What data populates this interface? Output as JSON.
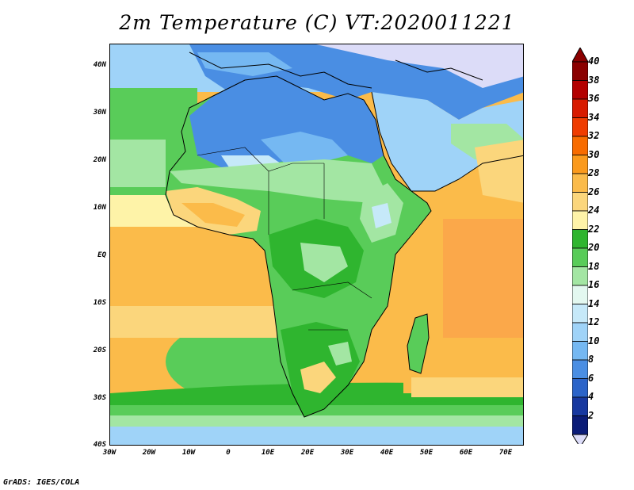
{
  "title": "2m Temperature (C) VT:2020011221",
  "footer": "GrADS: IGES/COLA",
  "lat_labels": [
    "40N",
    "30N",
    "20N",
    "10N",
    "EQ",
    "10S",
    "20S",
    "30S",
    "40S"
  ],
  "lon_labels": [
    "30W",
    "20W",
    "10W",
    "0",
    "10E",
    "20E",
    "30E",
    "40E",
    "50E",
    "60E",
    "70E"
  ],
  "colorbar": {
    "labels": [
      "40",
      "38",
      "36",
      "34",
      "32",
      "30",
      "28",
      "26",
      "24",
      "22",
      "20",
      "18",
      "16",
      "14",
      "12",
      "10",
      "8",
      "6",
      "4",
      "2"
    ],
    "colors": [
      "#8b0000",
      "#b30000",
      "#d81b00",
      "#ef3c00",
      "#f86c00",
      "#fb9a1c",
      "#fbbb4a",
      "#fbd67c",
      "#fef3a8",
      "#2fb52f",
      "#59cc59",
      "#a3e6a3",
      "#e3f8f0",
      "#c6e9f9",
      "#9fd3f8",
      "#75b8f2",
      "#4a8ee3",
      "#2b64c9",
      "#1738a0",
      "#0b1c78"
    ],
    "below_color": "#dcdcf8"
  },
  "map": {
    "region": "Africa",
    "lon_range": [
      -30,
      75
    ],
    "lat_range": [
      -40,
      45
    ],
    "field": "2m temperature",
    "units": "C"
  }
}
